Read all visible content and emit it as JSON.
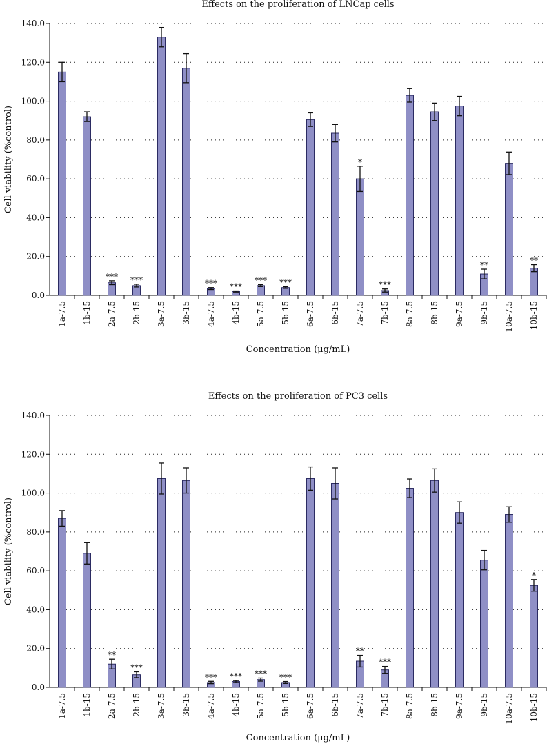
{
  "chart_data": [
    {
      "type": "bar",
      "title": "Effects on the proliferation of LNCap cells",
      "xlabel": "Concentration (μg/mL)",
      "ylabel": "Cell viability (%control)",
      "ylim": [
        0,
        140
      ],
      "yticks": [
        "0.0",
        "20.0",
        "40.0",
        "60.0",
        "80.0",
        "100.0",
        "120.0",
        "140.0"
      ],
      "categories": [
        "1a-7.5",
        "1b-15",
        "2a-7.5",
        "2b-15",
        "3a-7.5",
        "3b-15",
        "4a-7.5",
        "4b-15",
        "5a-7.5",
        "5b-15",
        "6a-7.5",
        "6b-15",
        "7a-7.5",
        "7b-15",
        "8a-7.5",
        "8b-15",
        "9a-7.5",
        "9b-15",
        "10a-7.5",
        "10b-15"
      ],
      "values": [
        115,
        92,
        6.5,
        5,
        133,
        117,
        3.5,
        2,
        5,
        4,
        90.5,
        83.5,
        60,
        2.5,
        103,
        94.5,
        97.5,
        11,
        68,
        14
      ],
      "errors": [
        5,
        2.5,
        1,
        0.7,
        5,
        7.5,
        0.5,
        0.3,
        0.5,
        0.4,
        3.5,
        4.5,
        6.5,
        0.8,
        3.5,
        4.5,
        5,
        2.5,
        5.8,
        1.8
      ],
      "significance": [
        "",
        "",
        "***",
        "***",
        "",
        "",
        "***",
        "***",
        "***",
        "***",
        "",
        "",
        "*",
        "***",
        "",
        "",
        "",
        "**",
        "",
        "**"
      ],
      "grid": true
    },
    {
      "type": "bar",
      "title": "Effects on the proliferation of PC3 cells",
      "xlabel": "Concentration (μg/mL)",
      "ylabel": "Cell viability (%control)",
      "ylim": [
        0,
        140
      ],
      "yticks": [
        "0.0",
        "20.0",
        "40.0",
        "60.0",
        "80.0",
        "100.0",
        "120.0",
        "140.0"
      ],
      "categories": [
        "1a-7.5",
        "1b-15",
        "2a-7.5",
        "2b-15",
        "3a-7.5",
        "3b-15",
        "4a-7.5",
        "4b-15",
        "5a-7.5",
        "5b-15",
        "6a-7.5",
        "6b-15",
        "7a-7.5",
        "7b-15",
        "8a-7.5",
        "8b-15",
        "9a-7.5",
        "9b-15",
        "10a-7.5",
        "10b-15"
      ],
      "values": [
        87,
        69,
        12,
        6.5,
        107.5,
        106.5,
        2.5,
        3,
        4,
        2.5,
        107.5,
        105,
        13.5,
        9,
        102.5,
        106.5,
        90,
        65.5,
        89,
        52.5
      ],
      "errors": [
        4,
        5.5,
        2.5,
        1.5,
        8,
        6.5,
        0.6,
        0.5,
        0.8,
        0.5,
        6,
        8,
        3,
        1.8,
        4.8,
        6,
        5.5,
        5,
        4,
        3
      ],
      "significance": [
        "",
        "",
        "**",
        "***",
        "",
        "",
        "***",
        "***",
        "***",
        "***",
        "",
        "",
        "**",
        "***",
        "",
        "",
        "",
        "",
        "",
        "*"
      ],
      "grid": true
    }
  ]
}
